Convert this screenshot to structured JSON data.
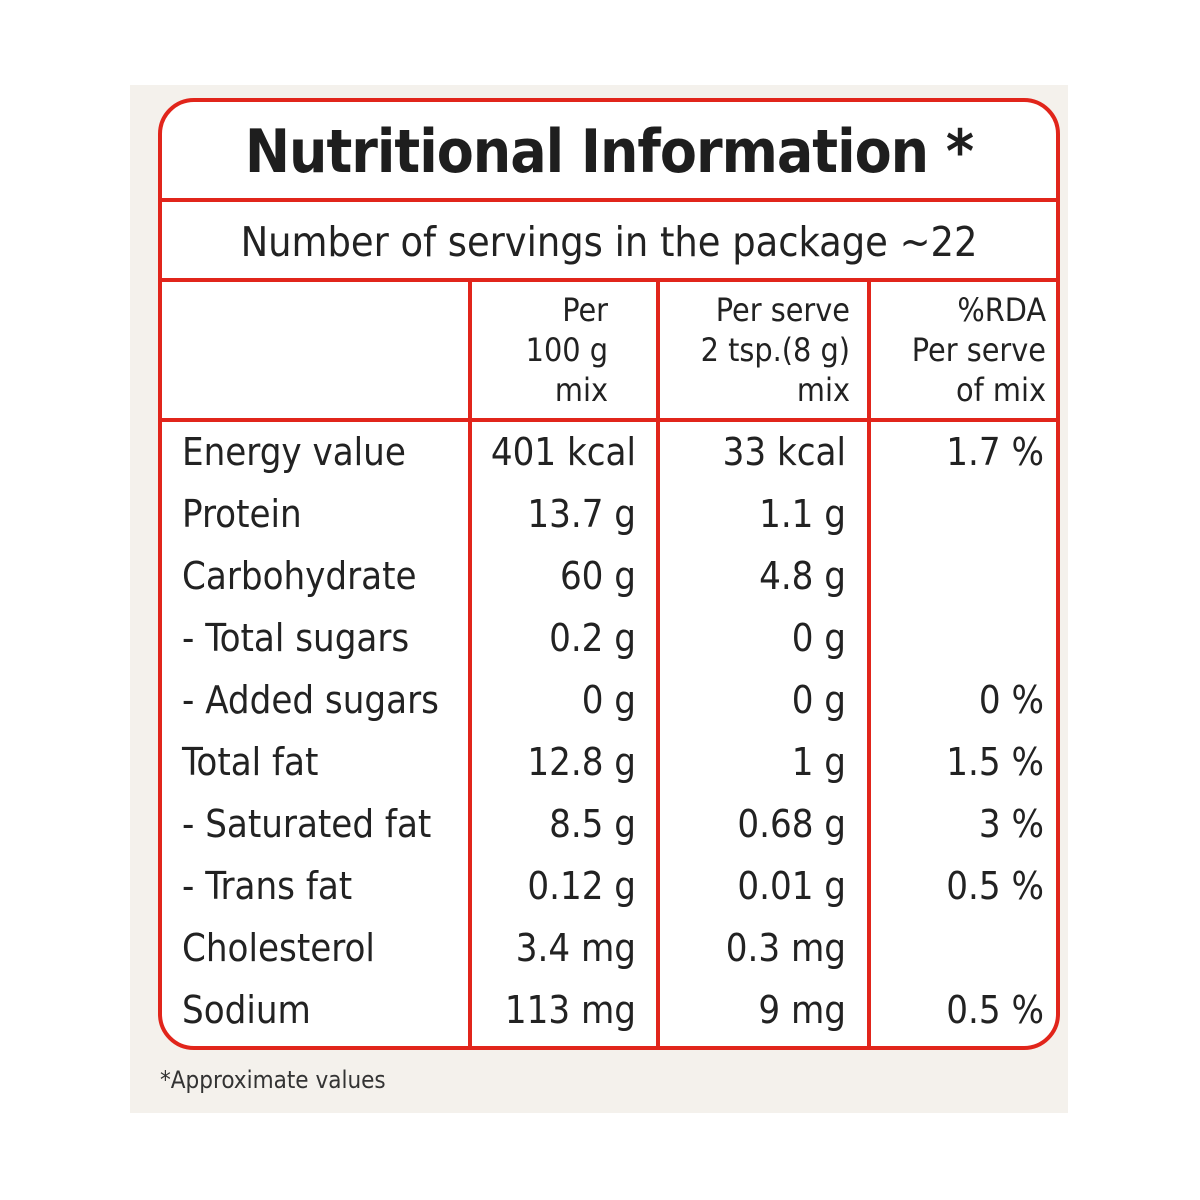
{
  "title": "Nutritional Information *",
  "servings": "Number of servings in the package ~22",
  "headers": {
    "nutrient": "",
    "per100": "Per\n100 g\nmix",
    "per_serve": "Per serve\n2 tsp.(8 g)\nmix",
    "rda": "%RDA\nPer serve\nof mix"
  },
  "rows": [
    {
      "name": "Energy value",
      "per100": "401 kcal",
      "per_serve": "33 kcal",
      "rda": "1.7 %"
    },
    {
      "name": "Protein",
      "per100": "13.7 g",
      "per_serve": "1.1 g",
      "rda": ""
    },
    {
      "name": "Carbohydrate",
      "per100": "60 g",
      "per_serve": "4.8 g",
      "rda": ""
    },
    {
      "name": "- Total sugars",
      "per100": "0.2 g",
      "per_serve": "0 g",
      "rda": ""
    },
    {
      "name": "- Added sugars",
      "per100": "0 g",
      "per_serve": "0 g",
      "rda": "0 %"
    },
    {
      "name": "Total fat",
      "per100": "12.8 g",
      "per_serve": "1 g",
      "rda": "1.5 %"
    },
    {
      "name": "- Saturated fat",
      "per100": "8.5 g",
      "per_serve": "0.68 g",
      "rda": "3 %"
    },
    {
      "name": "- Trans fat",
      "per100": "0.12 g",
      "per_serve": "0.01 g",
      "rda": "0.5 %"
    },
    {
      "name": "Cholesterol",
      "per100": "3.4 mg",
      "per_serve": "0.3 mg",
      "rda": ""
    },
    {
      "name": "Sodium",
      "per100": "113 mg",
      "per_serve": "9 mg",
      "rda": "0.5 %"
    }
  ],
  "footnote": "*Approximate values",
  "colors": {
    "border": "#e1251b",
    "background": "#f4f1ec",
    "text": "#222222"
  }
}
